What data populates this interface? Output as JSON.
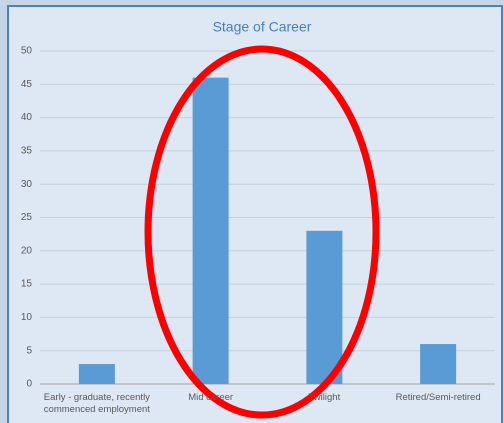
{
  "chart_data": {
    "type": "bar",
    "title": "Stage of Career",
    "categories": [
      "Early - graduate, recently commenced employment",
      "Mid career",
      "Twilight",
      "Retired/Semi-retired"
    ],
    "values": [
      3,
      46,
      23,
      6
    ],
    "color": "#5b9bd5",
    "ylim": [
      0,
      50
    ],
    "yticks": [
      0,
      5,
      10,
      15,
      20,
      25,
      30,
      35,
      40,
      45,
      50
    ],
    "grid": true
  }
}
